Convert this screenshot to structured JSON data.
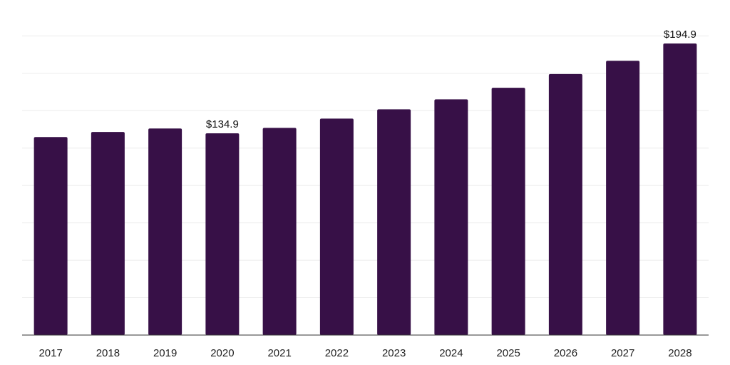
{
  "chart_data": {
    "type": "bar",
    "categories": [
      "2017",
      "2018",
      "2019",
      "2020",
      "2021",
      "2022",
      "2023",
      "2024",
      "2025",
      "2026",
      "2027",
      "2028"
    ],
    "values": [
      132.4,
      135.8,
      138.1,
      134.9,
      138.5,
      144.7,
      150.9,
      157.6,
      165.3,
      174.5,
      183.4,
      194.9
    ],
    "data_labels": [
      "",
      "",
      "",
      "$134.9",
      "",
      "",
      "",
      "",
      "",
      "",
      "",
      "$194.9"
    ],
    "title": "",
    "xlabel": "",
    "ylabel": "",
    "ylim": [
      0,
      224
    ],
    "gridlines": [
      0,
      25,
      50,
      75,
      100,
      125,
      150,
      175,
      200,
      225
    ],
    "grid": true,
    "legend": "none",
    "colors": {
      "bar": "#371047",
      "grid": "#ececec",
      "axis": "#333333",
      "text": "#111111"
    }
  }
}
